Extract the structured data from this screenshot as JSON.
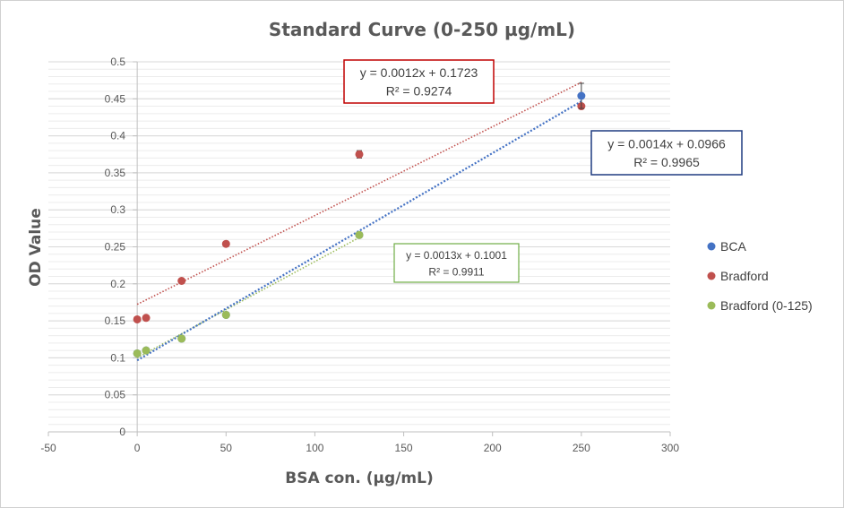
{
  "chart_data": {
    "type": "scatter",
    "title": "Standard Curve (0-250 µg/mL)",
    "xlabel": "BSA con. (µg/mL)",
    "ylabel": "OD Value",
    "xlim": [
      -50,
      300
    ],
    "ylim": [
      0,
      0.5
    ],
    "x_ticks": [
      -50,
      0,
      50,
      100,
      150,
      200,
      250,
      300
    ],
    "y_ticks": [
      0,
      0.05,
      0.1,
      0.15,
      0.2,
      0.25,
      0.3,
      0.35,
      0.4,
      0.45,
      0.5
    ],
    "x_tick_labels": [
      "-50",
      "0",
      "50",
      "100",
      "150",
      "200",
      "250",
      "300"
    ],
    "y_tick_labels": [
      "0",
      "0.05",
      "0.1",
      "0.15",
      "0.2",
      "0.25",
      "0.3",
      "0.35",
      "0.4",
      "0.45",
      "0.5"
    ],
    "y_minor_step": 0.01,
    "grid": true,
    "legend_position": "right",
    "series": [
      {
        "name": "BCA",
        "color": "#4472c4",
        "points": [
          [
            0,
            0.106
          ],
          [
            5,
            0.11
          ],
          [
            25,
            0.126
          ],
          [
            50,
            0.158
          ],
          [
            125,
            0.266
          ],
          [
            250,
            0.454
          ]
        ],
        "error_bars": [
          0,
          0,
          0,
          0,
          0,
          0.017
        ],
        "trendline": {
          "slope": 0.0014,
          "intercept": 0.0966,
          "x_range": [
            0,
            250
          ],
          "color": "#4472c4"
        }
      },
      {
        "name": "Bradford",
        "color": "#c0504d",
        "points": [
          [
            0,
            0.152
          ],
          [
            5,
            0.154
          ],
          [
            25,
            0.204
          ],
          [
            50,
            0.254
          ],
          [
            125,
            0.375
          ],
          [
            250,
            0.44
          ]
        ],
        "error_bars": [
          0,
          0,
          0,
          0,
          0.005,
          0
        ],
        "trendline": {
          "slope": 0.0012,
          "intercept": 0.1723,
          "x_range": [
            0,
            250
          ],
          "color": "#c0504d"
        }
      },
      {
        "name": "Bradford (0-125)",
        "color": "#9bbb59",
        "points": [
          [
            0,
            0.106
          ],
          [
            5,
            0.11
          ],
          [
            25,
            0.126
          ],
          [
            50,
            0.158
          ],
          [
            125,
            0.266
          ]
        ],
        "error_bars": [
          0,
          0,
          0,
          0,
          0
        ],
        "trendline": {
          "slope": 0.0013,
          "intercept": 0.1001,
          "x_range": [
            0,
            125
          ],
          "color": "#9bbb59"
        }
      }
    ],
    "annotations": [
      {
        "series": "Bradford",
        "line1": "y = 0.0012x + 0.1723",
        "line2": "R² = 0.9274",
        "border": "#c00000"
      },
      {
        "series": "BCA",
        "line1": "y = 0.0014x + 0.0966",
        "line2": "R² = 0.9965",
        "border": "#1f3b80"
      },
      {
        "series": "Bradford (0-125)",
        "line1": "y = 0.0013x + 0.1001",
        "line2": "R² = 0.9911",
        "border": "#70ad47"
      }
    ]
  }
}
